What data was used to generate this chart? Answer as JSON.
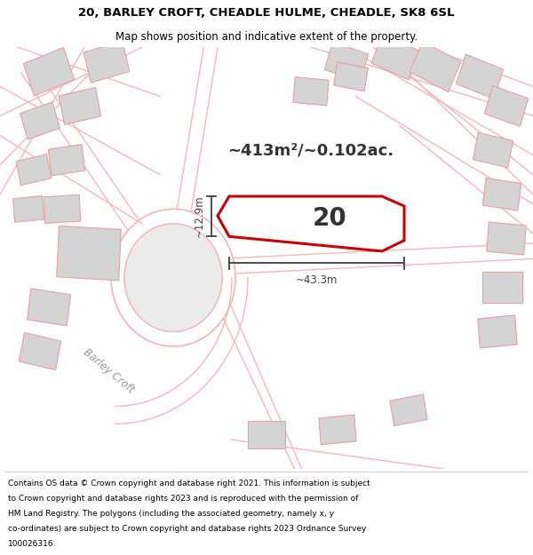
{
  "title_line1": "20, BARLEY CROFT, CHEADLE HULME, CHEADLE, SK8 6SL",
  "title_line2": "Map shows position and indicative extent of the property.",
  "area_label": "~413m²/~0.102ac.",
  "plot_number": "20",
  "dim_width": "~43.3m",
  "dim_height": "~12.9m",
  "street_label": "Barley Croft",
  "footer_lines": [
    "Contains OS data © Crown copyright and database right 2021. This information is subject",
    "to Crown copyright and database rights 2023 and is reproduced with the permission of",
    "HM Land Registry. The polygons (including the associated geometry, namely x, y",
    "co-ordinates) are subject to Crown copyright and database rights 2023 Ordnance Survey",
    "100026316."
  ],
  "bg_color": "#ffffff",
  "map_bg": "#f0f0f0",
  "road_color": "#f5b8b8",
  "road_lw": 1.0,
  "plot_line_color": "#cc0000",
  "building_fill": "#d4d4d4",
  "building_edge": "#e8a0a0",
  "building_lw": 0.8,
  "dim_color": "#404040",
  "title_fontsize": 9.5,
  "subtitle_fontsize": 8.5,
  "area_fontsize": 13,
  "plot_num_fontsize": 20,
  "footer_fontsize": 6.5
}
